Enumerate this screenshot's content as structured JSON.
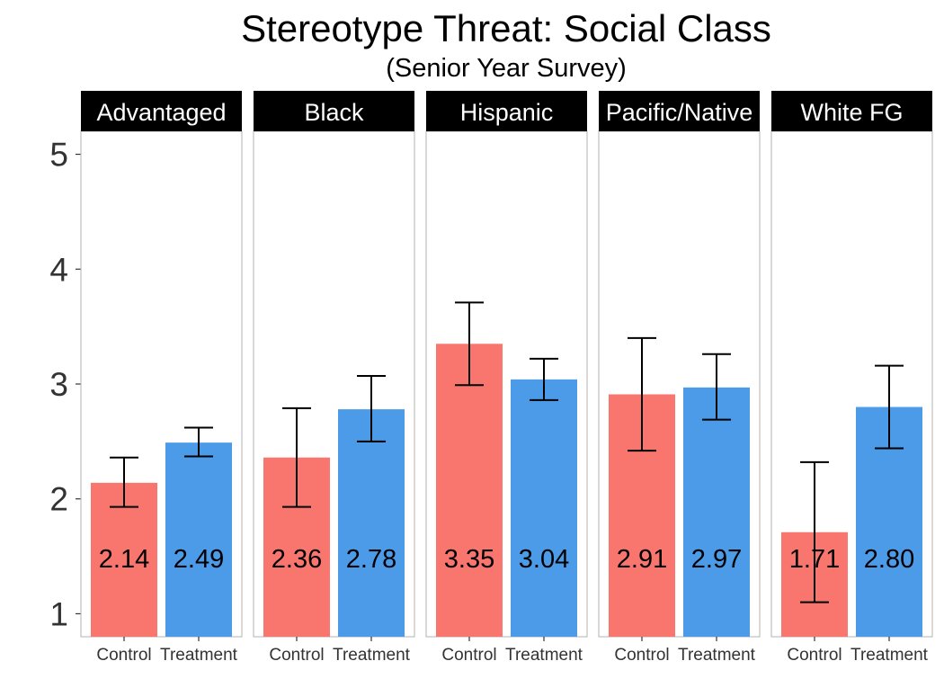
{
  "chart_data": {
    "type": "bar",
    "title": "Stereotype Threat: Social Class",
    "subtitle": "(Senior Year Survey)",
    "xlabel": "",
    "ylabel": "",
    "ylim": [
      0.8,
      5.2
    ],
    "yticks": [
      "1",
      "2",
      "3",
      "4",
      "5"
    ],
    "categories": [
      "Control",
      "Treatment"
    ],
    "colors": {
      "Control": "#F8766D",
      "Treatment": "#4C9BE8",
      "strip_background": "#000000",
      "strip_text": "#ffffff"
    },
    "panels": [
      {
        "name": "Advantaged",
        "bars": [
          {
            "group": "Control",
            "value": 2.14,
            "label": "2.14",
            "error_low": 1.93,
            "error_high": 2.36
          },
          {
            "group": "Treatment",
            "value": 2.49,
            "label": "2.49",
            "error_low": 2.37,
            "error_high": 2.62
          }
        ]
      },
      {
        "name": "Black",
        "bars": [
          {
            "group": "Control",
            "value": 2.36,
            "label": "2.36",
            "error_low": 1.93,
            "error_high": 2.79
          },
          {
            "group": "Treatment",
            "value": 2.78,
            "label": "2.78",
            "error_low": 2.5,
            "error_high": 3.07
          }
        ]
      },
      {
        "name": "Hispanic",
        "bars": [
          {
            "group": "Control",
            "value": 3.35,
            "label": "3.35",
            "error_low": 2.99,
            "error_high": 3.71
          },
          {
            "group": "Treatment",
            "value": 3.04,
            "label": "3.04",
            "error_low": 2.86,
            "error_high": 3.22
          }
        ]
      },
      {
        "name": "Pacific/Native",
        "bars": [
          {
            "group": "Control",
            "value": 2.91,
            "label": "2.91",
            "error_low": 2.42,
            "error_high": 3.4
          },
          {
            "group": "Treatment",
            "value": 2.97,
            "label": "2.97",
            "error_low": 2.69,
            "error_high": 3.26
          }
        ]
      },
      {
        "name": "White FG",
        "bars": [
          {
            "group": "Control",
            "value": 1.71,
            "label": "1.71",
            "error_low": 1.1,
            "error_high": 2.32
          },
          {
            "group": "Treatment",
            "value": 2.8,
            "label": "2.80",
            "error_low": 2.44,
            "error_high": 3.16
          }
        ]
      }
    ],
    "label_y_value": 1.48,
    "grid": false,
    "legend": "none"
  }
}
